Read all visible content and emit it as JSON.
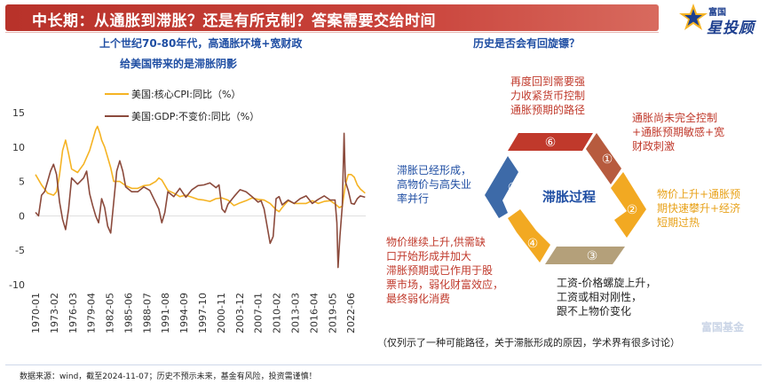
{
  "title": "中长期：从通胀到滞胀？还是有所克制？答案需要交给时间",
  "logo": {
    "small": "富国",
    "big": "星投顾"
  },
  "left_subtitle_1": "上个世纪70-80年代，高通胀环境+宽财政",
  "left_subtitle_2": "给美国带来的是滞胀阴影",
  "right_subtitle": "历史是否会有回旋镖？",
  "colors": {
    "cpi": "#f5b323",
    "gdp": "#8b4a3c",
    "accent": "#c0392b",
    "blue": "#1f4ea3"
  },
  "chart_data": {
    "type": "line",
    "x_tick_labels": [
      "1970-01",
      "1973-02",
      "1976-03",
      "1979-04",
      "1982-05",
      "1985-06",
      "1988-07",
      "1991-08",
      "1994-09",
      "1997-10",
      "2000-11",
      "2003-12",
      "2007-01",
      "2010-02",
      "2013-03",
      "2016-04",
      "2019-05",
      "2022-06"
    ],
    "ylim": [
      -10,
      15
    ],
    "y_ticks": [
      15,
      10,
      5,
      0,
      -5,
      -10
    ],
    "legend_position": "top-left",
    "series": [
      {
        "name": "美国:核心CPI:同比（%）",
        "x": [
          1970.0,
          1971.0,
          1972.0,
          1973.0,
          1973.5,
          1974.0,
          1974.5,
          1975.0,
          1975.5,
          1976.0,
          1977.0,
          1978.0,
          1979.0,
          1979.5,
          1980.0,
          1980.3,
          1980.7,
          1981.0,
          1981.5,
          1982.0,
          1982.5,
          1983.0,
          1984.0,
          1985.0,
          1986.0,
          1987.0,
          1988.0,
          1989.0,
          1990.0,
          1990.5,
          1991.0,
          1992.0,
          1993.0,
          1994.0,
          1995.0,
          1996.0,
          1997.0,
          1998.0,
          1999.0,
          2000.0,
          2001.0,
          2002.0,
          2003.0,
          2004.0,
          2005.0,
          2006.0,
          2007.0,
          2008.0,
          2009.0,
          2010.0,
          2010.5,
          2011.0,
          2012.0,
          2013.0,
          2014.0,
          2015.0,
          2016.0,
          2017.0,
          2018.0,
          2019.0,
          2020.0,
          2020.5,
          2021.0,
          2021.5,
          2022.0,
          2022.5,
          2023.0,
          2023.5,
          2024.0,
          2024.8
        ],
        "values": [
          6.0,
          4.5,
          3.3,
          3.0,
          3.5,
          6.0,
          9.5,
          11.0,
          9.0,
          6.8,
          6.3,
          7.5,
          9.5,
          11.0,
          12.5,
          13.0,
          12.0,
          11.0,
          10.0,
          8.5,
          7.0,
          5.0,
          5.0,
          4.4,
          4.0,
          4.0,
          4.4,
          4.5,
          5.0,
          5.5,
          5.2,
          3.7,
          3.3,
          2.8,
          3.0,
          2.7,
          2.4,
          2.3,
          2.1,
          2.5,
          2.6,
          2.3,
          1.5,
          1.9,
          2.2,
          2.6,
          2.4,
          2.3,
          1.8,
          0.9,
          0.6,
          1.2,
          2.2,
          1.8,
          1.8,
          1.8,
          2.2,
          1.8,
          2.1,
          2.2,
          1.6,
          1.2,
          1.4,
          4.5,
          6.0,
          6.0,
          5.6,
          4.5,
          3.9,
          3.3
        ]
      },
      {
        "name": "美国:GDP:不变价:同比（%）",
        "x": [
          1970.0,
          1970.5,
          1971.0,
          1971.5,
          1972.0,
          1972.5,
          1973.0,
          1973.5,
          1974.0,
          1974.5,
          1975.0,
          1975.5,
          1976.0,
          1977.0,
          1978.0,
          1978.5,
          1979.0,
          1979.5,
          1980.0,
          1980.5,
          1981.0,
          1981.5,
          1982.0,
          1982.5,
          1983.0,
          1983.5,
          1984.0,
          1984.5,
          1985.0,
          1986.0,
          1987.0,
          1988.0,
          1989.0,
          1990.0,
          1990.5,
          1991.0,
          1991.5,
          1992.0,
          1993.0,
          1994.0,
          1995.0,
          1996.0,
          1997.0,
          1998.0,
          1999.0,
          2000.0,
          2000.5,
          2001.0,
          2001.5,
          2002.0,
          2003.0,
          2004.0,
          2005.0,
          2006.0,
          2007.0,
          2007.5,
          2008.0,
          2008.5,
          2009.0,
          2009.5,
          2010.0,
          2010.5,
          2011.0,
          2012.0,
          2013.0,
          2014.0,
          2015.0,
          2016.0,
          2017.0,
          2018.0,
          2019.0,
          2019.8,
          2020.1,
          2020.3,
          2020.6,
          2021.0,
          2021.3,
          2021.5,
          2022.0,
          2022.5,
          2023.0,
          2023.5,
          2024.0,
          2024.8
        ],
        "values": [
          0.5,
          0.0,
          3.0,
          3.5,
          5.0,
          6.5,
          7.5,
          6.0,
          2.0,
          -0.5,
          -2.0,
          1.0,
          5.5,
          4.6,
          5.5,
          6.5,
          3.2,
          1.5,
          0.0,
          -1.0,
          2.5,
          1.2,
          -1.5,
          -2.5,
          2.0,
          6.5,
          8.0,
          6.5,
          4.2,
          3.5,
          3.5,
          4.2,
          3.7,
          1.9,
          1.0,
          -1.0,
          0.5,
          3.5,
          2.8,
          4.0,
          2.7,
          3.8,
          4.4,
          4.5,
          4.8,
          4.1,
          4.5,
          1.0,
          0.5,
          1.7,
          2.8,
          3.8,
          3.5,
          2.8,
          2.0,
          2.2,
          1.0,
          -1.5,
          -4.0,
          -3.0,
          2.5,
          2.8,
          1.6,
          2.3,
          1.8,
          2.5,
          2.9,
          1.8,
          2.4,
          2.9,
          2.3,
          2.3,
          -1.0,
          -7.5,
          -3.0,
          1.5,
          12.0,
          5.0,
          3.7,
          1.8,
          1.7,
          2.5,
          2.9,
          2.7
        ]
      }
    ]
  },
  "cycle": {
    "center_label": "滞胀过程",
    "steps": [
      {
        "num": "①",
        "text": [
          "通胀尚未完全控制",
          "+通胀预期敏感+宽",
          "财政刺激"
        ]
      },
      {
        "num": "②",
        "text": [
          "物价上升+通胀预",
          "期快速攀升+经济",
          "短期过热"
        ]
      },
      {
        "num": "③",
        "text": [
          "工资-价格螺旋上升，",
          "工资或相对刚性，",
          "跟不上物价变化"
        ]
      },
      {
        "num": "④",
        "text": [
          "物价继续上升,供需缺",
          "口开始形成并加大",
          "滞胀预期或已作用于股",
          "票市场，弱化财富效应，",
          "最终弱化消费"
        ]
      },
      {
        "num": "⑤",
        "text": [
          "滞胀已经形成，",
          "高物价与高失业",
          "率并行"
        ]
      },
      {
        "num": "⑥",
        "text": [
          "再度回到需要强",
          "力收紧货币控制",
          "通胀预期的路径"
        ]
      }
    ]
  },
  "footnote": "（仅列示了一种可能路径，关于滞胀形成的原因，学术界有很多讨论）",
  "source": "数据来源：wind，截至2024-11-07；历史不预示未来，基金有风险，投资需谨慎！",
  "watermark": "富国基金"
}
